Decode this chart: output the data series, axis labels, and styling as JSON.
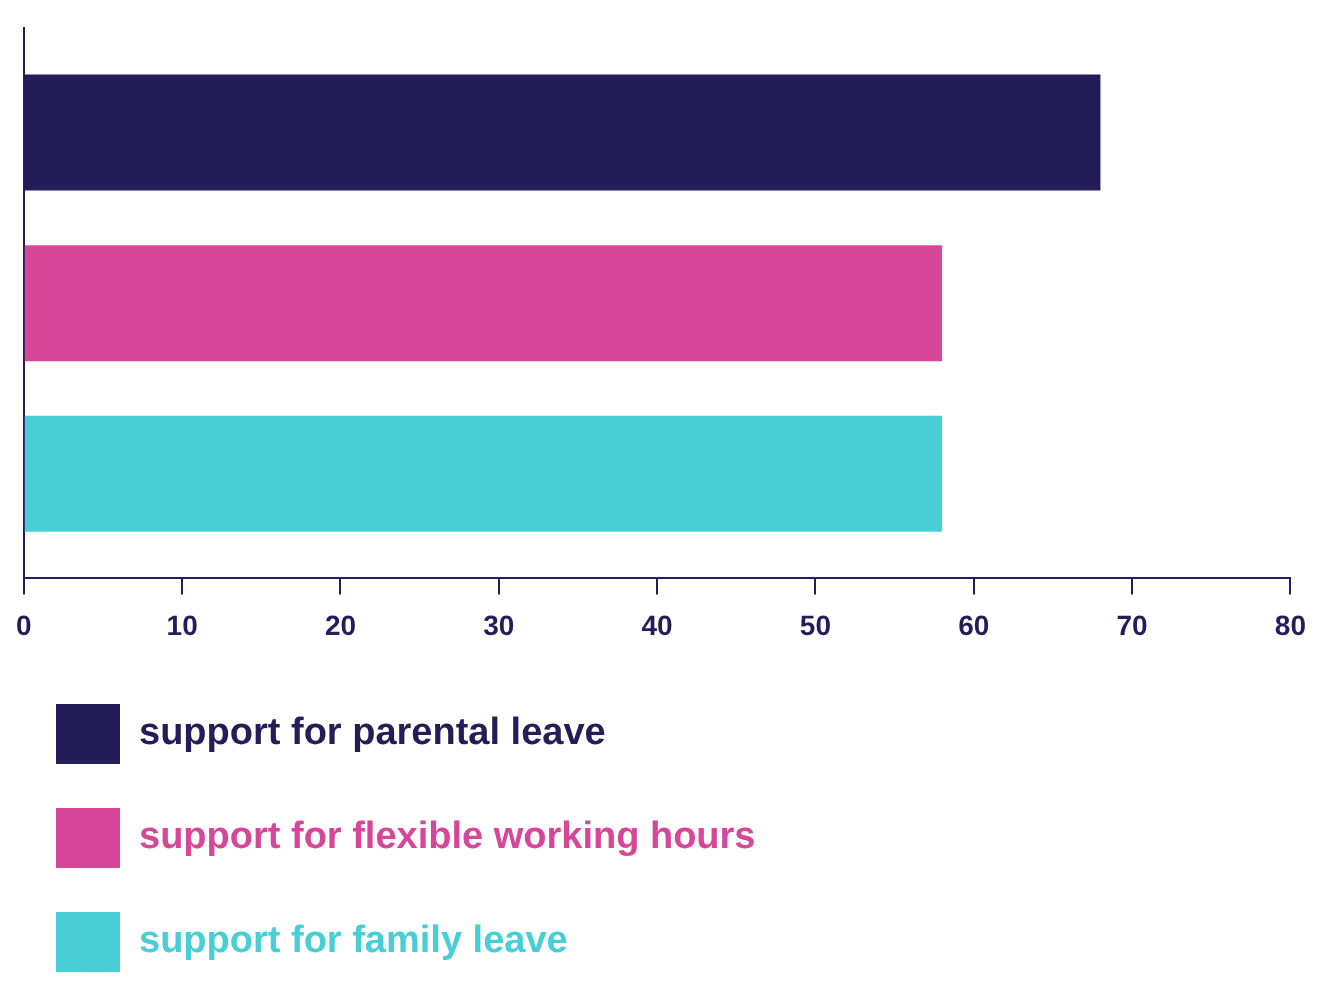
{
  "chart_data": {
    "type": "bar",
    "orientation": "horizontal",
    "categories": [
      null
    ],
    "series": [
      {
        "name": "support for parental leave",
        "color": "#251d5a",
        "values": [
          68
        ]
      },
      {
        "name": "support for flexible working hours",
        "color": "#d6479a",
        "values": [
          58
        ]
      },
      {
        "name": "support for family leave",
        "color": "#48ced6",
        "values": [
          58
        ]
      }
    ],
    "xlim": [
      0,
      80
    ],
    "xticks": [
      0,
      10,
      20,
      30,
      40,
      50,
      60,
      70,
      80
    ],
    "grid": false,
    "legend": "bottom left",
    "tick_labels": "x"
  }
}
